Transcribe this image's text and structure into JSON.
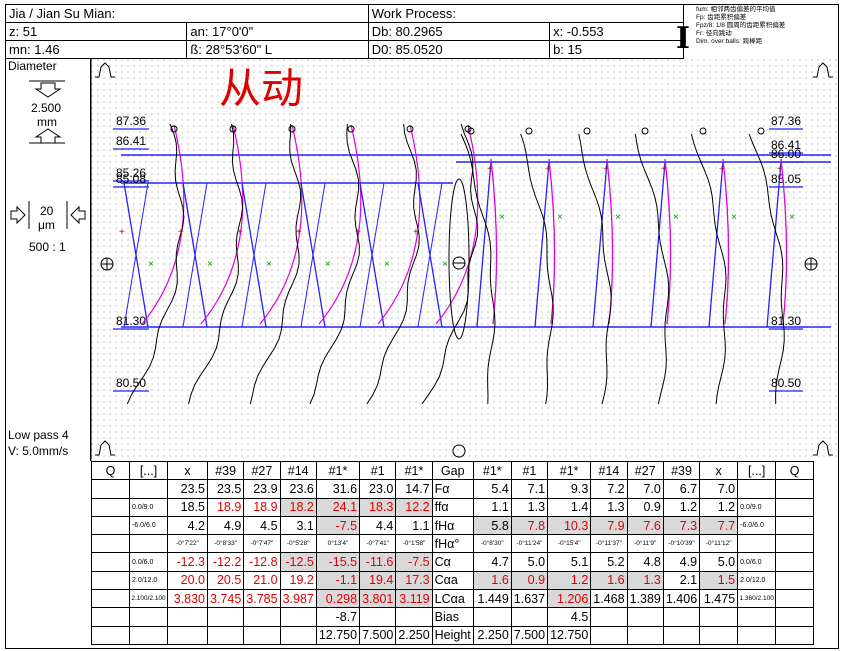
{
  "header": {
    "row1": {
      "gear_name": "Jia / Jian Su Mian:",
      "work_process": "Work Process:"
    },
    "row2": {
      "z": "z: 51",
      "an": "an: 17°0'0\"",
      "db": "Db: 80.2965",
      "x": "x: -0.553"
    },
    "row3": {
      "mn": "mn: 1.46",
      "beta": "ß: 28°53'60\" L",
      "d0": "D0: 85.0520",
      "b": "b: 15"
    },
    "legend": [
      "fum: 相邻两齿偏差的平均值",
      "Fp: 齿距累积偏差",
      "Fpz/8: 1/8 圆周的齿距累积偏差",
      "Fr: 径向跳动",
      "Dim. over balls: 跨棒距"
    ]
  },
  "left_panel": {
    "mode": "Diameter",
    "scale_value": "2.500",
    "scale_unit": "mm",
    "mag_value": "20",
    "mag_unit": "μm",
    "ratio": "500 : 1",
    "filter": "Low pass 4",
    "speed": "V: 5.0mm/s"
  },
  "annotation": {
    "handwritten": "从动"
  },
  "chart_data": {
    "type": "line",
    "title": "",
    "description_labels": {
      "left_diameters": [
        "87.36",
        "86.41",
        "85.26",
        "85.08",
        "81.30",
        "80.50"
      ],
      "right_diameters": [
        "87.36",
        "86.41",
        "86.00",
        "85.05",
        "81.30",
        "80.50"
      ]
    },
    "series_labels_left": [
      "#39",
      "#27",
      "#14",
      "#1*",
      "#1",
      "#1*"
    ],
    "series_labels_right": [
      "#1*",
      "#1",
      "#1*",
      "#14",
      "#27",
      "#39"
    ]
  },
  "table": {
    "header": [
      "Q",
      "[...]",
      "x",
      "#39",
      "#27",
      "#14",
      "#1*",
      "#1",
      "#1*",
      "Gap",
      "#1*",
      "#1",
      "#1*",
      "#14",
      "#27",
      "#39",
      "x",
      "[...]",
      "Q"
    ],
    "rows": [
      {
        "left_tol": "",
        "x": "23.5",
        "vals_l": [
          "23.5",
          "23.9",
          "23.6",
          "31.6",
          "23.0",
          "14.7"
        ],
        "label": "Fα",
        "vals_r": [
          "5.4",
          "7.1",
          "9.3",
          "7.2",
          "7.0",
          "6.7"
        ],
        "xr": "7.0",
        "right_tol": ""
      },
      {
        "left_tol": "0.0/9.0",
        "x": "18.5",
        "vals_l": [
          "18.9",
          "18.9",
          "18.2",
          "24.1",
          "18.3",
          "12.2"
        ],
        "label": "ffα",
        "vals_r": [
          "1.1",
          "1.3",
          "1.4",
          "1.3",
          "0.9",
          "1.2"
        ],
        "xr": "1.2",
        "right_tol": "0.0/9.0"
      },
      {
        "left_tol": "-6.0/6.0",
        "x": "4.2",
        "vals_l": [
          "4.9",
          "4.5",
          "3.1",
          "-7.5",
          "4.4",
          "1.1"
        ],
        "label": "fHα",
        "vals_r": [
          "5.8",
          "7.8",
          "10.3",
          "7.9",
          "7.6",
          "7.3"
        ],
        "xr": "7.7",
        "right_tol": "-6.0/6.0"
      },
      {
        "left_tol": "",
        "x": "-0°7'22\"",
        "vals_l": [
          "-0°8'33\"",
          "-0°7'47\"",
          "-0°5'28\"",
          "0°13'4\"",
          "-0°7'41\"",
          "-0°1'58\""
        ],
        "label": "fHα°",
        "vals_r": [
          "-0°8'30\"",
          "-0°11'24\"",
          "-0°15'4\"",
          "-0°11'37\"",
          "-0°11'9\"",
          "-0°10'39\""
        ],
        "xr": "-0°11'12\"",
        "right_tol": ""
      },
      {
        "left_tol": "0.0/6.0",
        "x": "-12.3",
        "vals_l": [
          "-12.2",
          "-12.8",
          "-12.5",
          "-15.5",
          "-11.6",
          "-7.5"
        ],
        "label": "Cα",
        "vals_r": [
          "4.7",
          "5.0",
          "5.1",
          "5.2",
          "4.8",
          "4.9"
        ],
        "xr": "5.0",
        "right_tol": "0.0/6.0"
      },
      {
        "left_tol": "2.0/12.0",
        "x": "20.0",
        "vals_l": [
          "20.5",
          "21.0",
          "19.2",
          "-1.1",
          "19.4",
          "17.3"
        ],
        "label": "Cαa",
        "vals_r": [
          "1.6",
          "0.9",
          "1.2",
          "1.6",
          "1.3",
          "2.1"
        ],
        "xr": "1.5",
        "right_tol": "2.0/12.0"
      },
      {
        "left_tol": "2.100/2.100",
        "x": "3.830",
        "vals_l": [
          "3.745",
          "3.785",
          "3.987",
          "0.298",
          "3.801",
          "3.119"
        ],
        "label": "LCαa",
        "vals_r": [
          "1.449",
          "1.637",
          "1.206",
          "1.468",
          "1.389",
          "1.406"
        ],
        "xr": "1.475",
        "right_tol": "1.360/2.100"
      },
      {
        "left_tol": "",
        "x": "",
        "vals_l": [
          "",
          "",
          "",
          "-8.7",
          "",
          ""
        ],
        "label": "Bias",
        "vals_r": [
          "",
          "",
          "4.5",
          "",
          "",
          ""
        ],
        "xr": "",
        "right_tol": ""
      },
      {
        "left_tol": "",
        "x": "",
        "vals_l": [
          "",
          "",
          "",
          "12.750",
          "7.500",
          "2.250"
        ],
        "label": "Height",
        "vals_r": [
          "2.250",
          "7.500",
          "12.750",
          "",
          "",
          ""
        ],
        "xr": "",
        "right_tol": ""
      }
    ]
  },
  "colors": {
    "blue": "#2222ff",
    "magenta": "#e000e0",
    "red": "#e00000",
    "green": "#009900",
    "gray": "#d9d9d9"
  }
}
